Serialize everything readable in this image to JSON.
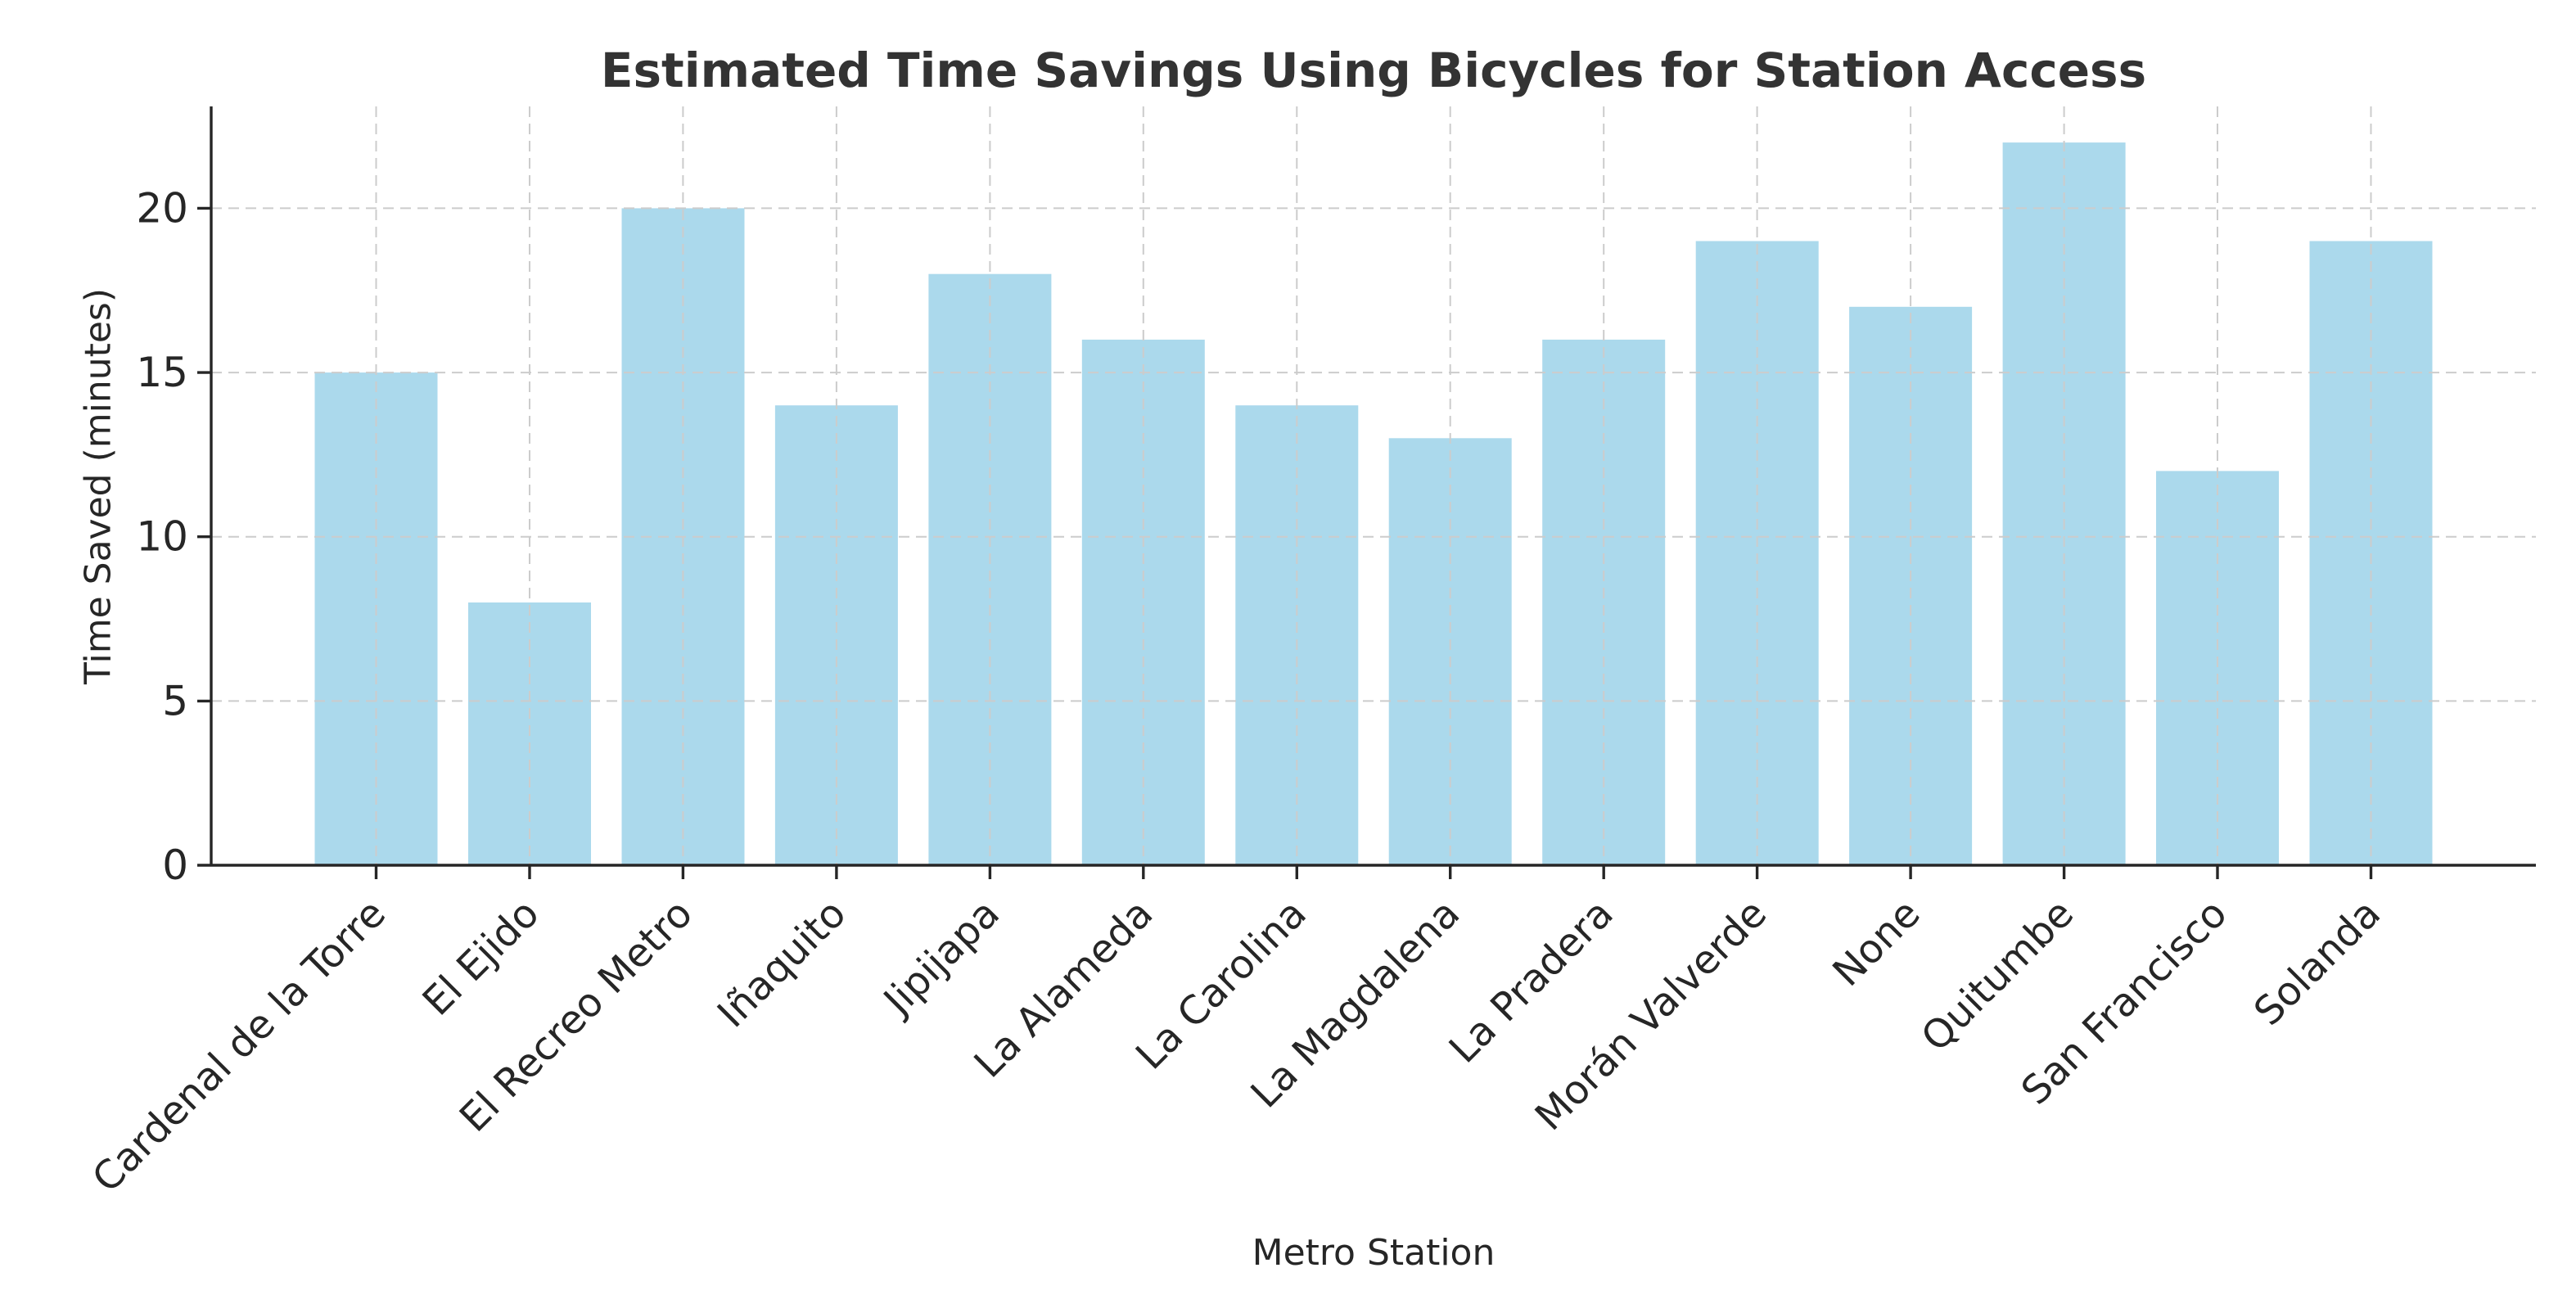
{
  "chart_data": {
    "type": "bar",
    "title": "Estimated Time Savings Using Bicycles for Station Access",
    "xlabel": "Metro Station",
    "ylabel": "Time Saved (minutes)",
    "categories": [
      "Cardenal de la Torre",
      "El Ejido",
      "El Recreo Metro",
      "Iñaquito",
      "Jipijapa",
      "La Alameda",
      "La Carolina",
      "La Magdalena",
      "La Pradera",
      "Morán Valverde",
      "None",
      "Quitumbe",
      "San Francisco",
      "Solanda"
    ],
    "values": [
      15,
      8,
      20,
      14,
      18,
      16,
      14,
      13,
      16,
      19,
      17,
      22,
      12,
      19
    ],
    "yticks": [
      0,
      5,
      10,
      15,
      20
    ],
    "ylim": [
      0,
      23.1
    ],
    "grid": true,
    "grid_style": "dashed",
    "legend": null,
    "bar_color": "#abd9ec",
    "grid_color": "#cccccc",
    "spine_color": "#262626",
    "text_color": "#262626",
    "title_color": "#333333",
    "background": "#ffffff"
  }
}
